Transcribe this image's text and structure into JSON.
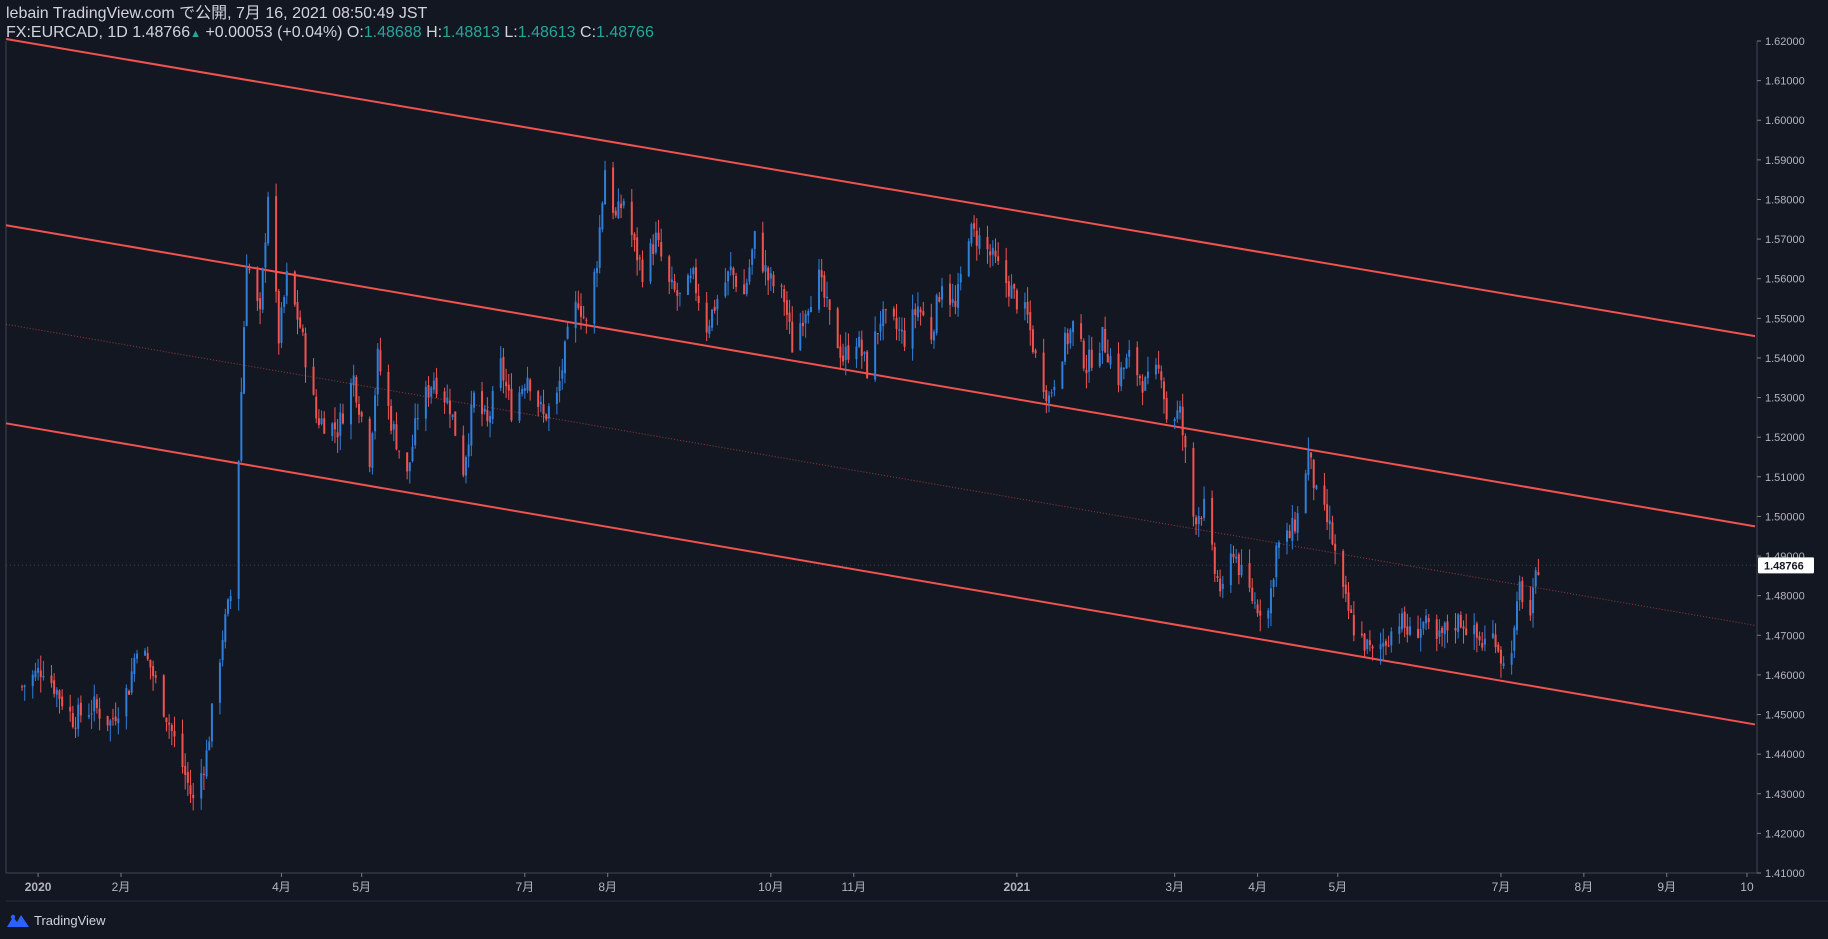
{
  "header": {
    "published": "lebain TradingView.com で公開, 7月 16, 2021 08:50:49 JST",
    "symbol": "FX:EURCAD, 1D",
    "last": "1.48766",
    "change_arrow": "▲",
    "change": "+0.00053 (+0.04%)",
    "o_label": "O:",
    "o_value": "1.48688",
    "h_label": "H:",
    "h_value": "1.48813",
    "l_label": "L:",
    "l_value": "1.48613",
    "c_label": "C:",
    "c_value": "1.48766"
  },
  "footer": {
    "brand": "TradingView",
    "logo_icon": "tradingview-logo-icon"
  },
  "colors": {
    "background": "#131722",
    "up": "#2f7ed8",
    "down": "#ef5350",
    "channel": "#ef5350",
    "text": "#d1d4dc",
    "accent": "#26a69a"
  },
  "chart_data": {
    "type": "candlestick",
    "symbol": "FX:EURCAD",
    "interval": "1D",
    "ylim": [
      1.41,
      1.62
    ],
    "y_ticks": [
      "1.41000",
      "1.42000",
      "1.43000",
      "1.44000",
      "1.45000",
      "1.46000",
      "1.47000",
      "1.48000",
      "1.49000",
      "1.50000",
      "1.51000",
      "1.52000",
      "1.53000",
      "1.54000",
      "1.55000",
      "1.56000",
      "1.57000",
      "1.58000",
      "1.59000",
      "1.60000",
      "1.61000",
      "1.62000"
    ],
    "x_ticks": [
      {
        "label": "2020",
        "date": "2020-01-01",
        "bold": true
      },
      {
        "label": "2月",
        "date": "2020-02-01"
      },
      {
        "label": "4月",
        "date": "2020-04-01"
      },
      {
        "label": "5月",
        "date": "2020-05-01"
      },
      {
        "label": "7月",
        "date": "2020-07-01"
      },
      {
        "label": "8月",
        "date": "2020-08-01"
      },
      {
        "label": "10月",
        "date": "2020-10-01"
      },
      {
        "label": "11月",
        "date": "2020-11-01"
      },
      {
        "label": "2021",
        "date": "2021-01-01",
        "bold": true
      },
      {
        "label": "3月",
        "date": "2021-03-01"
      },
      {
        "label": "4月",
        "date": "2021-04-01"
      },
      {
        "label": "5月",
        "date": "2021-05-01"
      },
      {
        "label": "7月",
        "date": "2021-07-01"
      },
      {
        "label": "8月",
        "date": "2021-08-01"
      },
      {
        "label": "9月",
        "date": "2021-09-01"
      },
      {
        "label": "10",
        "date": "2021-10-01"
      }
    ],
    "last_price": "1.48766",
    "channel_lines": [
      {
        "name": "upper",
        "style": "solid",
        "from": {
          "date": "2019-12-20",
          "price": 1.6205
        },
        "to": {
          "date": "2021-10-04",
          "price": 1.5455
        }
      },
      {
        "name": "middle",
        "style": "solid",
        "from": {
          "date": "2019-12-20",
          "price": 1.5735
        },
        "to": {
          "date": "2021-10-04",
          "price": 1.4975
        }
      },
      {
        "name": "median",
        "style": "dotted",
        "from": {
          "date": "2019-12-20",
          "price": 1.5485
        },
        "to": {
          "date": "2021-10-04",
          "price": 1.4725
        }
      },
      {
        "name": "lower",
        "style": "solid",
        "from": {
          "date": "2019-12-20",
          "price": 1.5235
        },
        "to": {
          "date": "2021-10-04",
          "price": 1.4475
        }
      }
    ],
    "price_path": [
      [
        "2019-12-26",
        1.457
      ],
      [
        "2020-01-03",
        1.462
      ],
      [
        "2020-01-08",
        1.456
      ],
      [
        "2020-01-14",
        1.449
      ],
      [
        "2020-01-22",
        1.452
      ],
      [
        "2020-01-28",
        1.448
      ],
      [
        "2020-02-04",
        1.457
      ],
      [
        "2020-02-07",
        1.468
      ],
      [
        "2020-02-12",
        1.462
      ],
      [
        "2020-02-18",
        1.45
      ],
      [
        "2020-02-24",
        1.437
      ],
      [
        "2020-02-28",
        1.428
      ],
      [
        "2020-03-04",
        1.44
      ],
      [
        "2020-03-10",
        1.47
      ],
      [
        "2020-03-13",
        1.48
      ],
      [
        "2020-03-16",
        1.515
      ],
      [
        "2020-03-19",
        1.565
      ],
      [
        "2020-03-24",
        1.55
      ],
      [
        "2020-03-27",
        1.582
      ],
      [
        "2020-03-31",
        1.545
      ],
      [
        "2020-04-03",
        1.56
      ],
      [
        "2020-04-08",
        1.548
      ],
      [
        "2020-04-14",
        1.525
      ],
      [
        "2020-04-22",
        1.522
      ],
      [
        "2020-04-28",
        1.535
      ],
      [
        "2020-05-04",
        1.515
      ],
      [
        "2020-05-07",
        1.54
      ],
      [
        "2020-05-12",
        1.524
      ],
      [
        "2020-05-18",
        1.51
      ],
      [
        "2020-05-22",
        1.526
      ],
      [
        "2020-05-28",
        1.535
      ],
      [
        "2020-06-03",
        1.528
      ],
      [
        "2020-06-08",
        1.512
      ],
      [
        "2020-06-12",
        1.53
      ],
      [
        "2020-06-17",
        1.523
      ],
      [
        "2020-06-22",
        1.538
      ],
      [
        "2020-06-26",
        1.527
      ],
      [
        "2020-07-02",
        1.536
      ],
      [
        "2020-07-08",
        1.525
      ],
      [
        "2020-07-13",
        1.53
      ],
      [
        "2020-07-17",
        1.545
      ],
      [
        "2020-07-21",
        1.555
      ],
      [
        "2020-07-24",
        1.548
      ],
      [
        "2020-07-28",
        1.565
      ],
      [
        "2020-07-31",
        1.588
      ],
      [
        "2020-08-04",
        1.575
      ],
      [
        "2020-08-07",
        1.58
      ],
      [
        "2020-08-11",
        1.568
      ],
      [
        "2020-08-14",
        1.562
      ],
      [
        "2020-08-19",
        1.57
      ],
      [
        "2020-08-24",
        1.558
      ],
      [
        "2020-08-28",
        1.555
      ],
      [
        "2020-09-02",
        1.56
      ],
      [
        "2020-09-07",
        1.548
      ],
      [
        "2020-09-11",
        1.555
      ],
      [
        "2020-09-16",
        1.562
      ],
      [
        "2020-09-21",
        1.556
      ],
      [
        "2020-09-25",
        1.57
      ],
      [
        "2020-09-30",
        1.56
      ],
      [
        "2020-10-06",
        1.555
      ],
      [
        "2020-10-09",
        1.543
      ],
      [
        "2020-10-14",
        1.553
      ],
      [
        "2020-10-19",
        1.56
      ],
      [
        "2020-10-23",
        1.55
      ],
      [
        "2020-10-28",
        1.54
      ],
      [
        "2020-11-02",
        1.545
      ],
      [
        "2020-11-06",
        1.537
      ],
      [
        "2020-11-11",
        1.55
      ],
      [
        "2020-11-16",
        1.548
      ],
      [
        "2020-11-20",
        1.545
      ],
      [
        "2020-11-25",
        1.553
      ],
      [
        "2020-11-30",
        1.546
      ],
      [
        "2020-12-04",
        1.56
      ],
      [
        "2020-12-09",
        1.552
      ],
      [
        "2020-12-14",
        1.572
      ],
      [
        "2020-12-18",
        1.57
      ],
      [
        "2020-12-23",
        1.565
      ],
      [
        "2020-12-29",
        1.558
      ],
      [
        "2021-01-05",
        1.55
      ],
      [
        "2021-01-08",
        1.54
      ],
      [
        "2021-01-13",
        1.53
      ],
      [
        "2021-01-18",
        1.542
      ],
      [
        "2021-01-22",
        1.548
      ],
      [
        "2021-01-27",
        1.538
      ],
      [
        "2021-02-02",
        1.545
      ],
      [
        "2021-02-08",
        1.535
      ],
      [
        "2021-02-12",
        1.54
      ],
      [
        "2021-02-18",
        1.533
      ],
      [
        "2021-02-24",
        1.537
      ],
      [
        "2021-02-26",
        1.525
      ],
      [
        "2021-03-03",
        1.526
      ],
      [
        "2021-03-08",
        1.5
      ],
      [
        "2021-03-12",
        1.502
      ],
      [
        "2021-03-16",
        1.486
      ],
      [
        "2021-03-19",
        1.48
      ],
      [
        "2021-03-23",
        1.492
      ],
      [
        "2021-03-26",
        1.485
      ],
      [
        "2021-03-31",
        1.478
      ],
      [
        "2021-04-05",
        1.476
      ],
      [
        "2021-04-08",
        1.492
      ],
      [
        "2021-04-13",
        1.495
      ],
      [
        "2021-04-16",
        1.5
      ],
      [
        "2021-04-20",
        1.516
      ],
      [
        "2021-04-23",
        1.505
      ],
      [
        "2021-04-28",
        1.497
      ],
      [
        "2021-05-03",
        1.48
      ],
      [
        "2021-05-07",
        1.472
      ],
      [
        "2021-05-11",
        1.468
      ],
      [
        "2021-05-14",
        1.465
      ],
      [
        "2021-05-19",
        1.469
      ],
      [
        "2021-05-24",
        1.474
      ],
      [
        "2021-05-28",
        1.47
      ],
      [
        "2021-06-02",
        1.473
      ],
      [
        "2021-06-07",
        1.468
      ],
      [
        "2021-06-11",
        1.472
      ],
      [
        "2021-06-16",
        1.474
      ],
      [
        "2021-06-21",
        1.47
      ],
      [
        "2021-06-24",
        1.468
      ],
      [
        "2021-06-29",
        1.47
      ],
      [
        "2021-07-02",
        1.462
      ],
      [
        "2021-07-06",
        1.47
      ],
      [
        "2021-07-08",
        1.482
      ],
      [
        "2021-07-12",
        1.475
      ],
      [
        "2021-07-15",
        1.488
      ]
    ]
  }
}
